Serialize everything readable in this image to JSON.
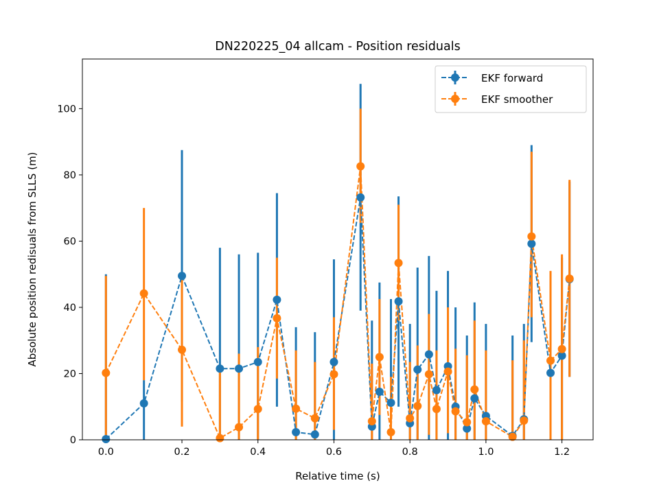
{
  "chart_data": {
    "type": "scatter",
    "title": "DN220225_04 allcam - Position residuals",
    "xlabel": "Relative time (s)",
    "ylabel": "Absolute position redisuals from SLLS (m)",
    "xlim": [
      -0.062,
      1.282
    ],
    "ylim": [
      0,
      115
    ],
    "xticks": [
      0.0,
      0.2,
      0.4,
      0.6,
      0.8,
      1.0,
      1.2
    ],
    "xtick_labels": [
      "0.0",
      "0.2",
      "0.4",
      "0.6",
      "0.8",
      "1.0",
      "1.2"
    ],
    "yticks": [
      0,
      20,
      40,
      60,
      80,
      100
    ],
    "ytick_labels": [
      "0",
      "20",
      "40",
      "60",
      "80",
      "100"
    ],
    "grid": false,
    "legend_position": "top-right",
    "series": [
      {
        "name": "EKF forward",
        "color": "#1f77b4",
        "line_style": "dashed",
        "marker": "circle",
        "points": [
          {
            "x": 0.0,
            "y": 0.2,
            "lo": 0,
            "hi": 50
          },
          {
            "x": 0.1,
            "y": 11,
            "lo": 0,
            "hi": 18
          },
          {
            "x": 0.2,
            "y": 49.5,
            "lo": 11.5,
            "hi": 87.5
          },
          {
            "x": 0.3,
            "y": 21.5,
            "lo": 0,
            "hi": 58
          },
          {
            "x": 0.35,
            "y": 21.5,
            "lo": 0,
            "hi": 56
          },
          {
            "x": 0.4,
            "y": 23.5,
            "lo": 0,
            "hi": 56.5
          },
          {
            "x": 0.45,
            "y": 42.3,
            "lo": 10,
            "hi": 74.5
          },
          {
            "x": 0.5,
            "y": 2.3,
            "lo": 0,
            "hi": 34
          },
          {
            "x": 0.55,
            "y": 1.6,
            "lo": 0,
            "hi": 32.5
          },
          {
            "x": 0.6,
            "y": 23.5,
            "lo": 0,
            "hi": 54.5
          },
          {
            "x": 0.67,
            "y": 73.2,
            "lo": 39,
            "hi": 107.5
          },
          {
            "x": 0.7,
            "y": 4,
            "lo": 0,
            "hi": 36
          },
          {
            "x": 0.72,
            "y": 14.5,
            "lo": 0,
            "hi": 47.5
          },
          {
            "x": 0.75,
            "y": 11.2,
            "lo": 0,
            "hi": 42.5
          },
          {
            "x": 0.77,
            "y": 41.8,
            "lo": 10,
            "hi": 73.5
          },
          {
            "x": 0.8,
            "y": 5,
            "lo": 0,
            "hi": 35
          },
          {
            "x": 0.82,
            "y": 21.2,
            "lo": 0,
            "hi": 52
          },
          {
            "x": 0.85,
            "y": 25.8,
            "lo": 0,
            "hi": 55.5
          },
          {
            "x": 0.87,
            "y": 15,
            "lo": 0,
            "hi": 45
          },
          {
            "x": 0.9,
            "y": 22.2,
            "lo": 0,
            "hi": 51
          },
          {
            "x": 0.92,
            "y": 10,
            "lo": 0,
            "hi": 40
          },
          {
            "x": 0.95,
            "y": 3.4,
            "lo": 0,
            "hi": 31.5
          },
          {
            "x": 0.97,
            "y": 12.5,
            "lo": 0,
            "hi": 41.5
          },
          {
            "x": 1.0,
            "y": 7.2,
            "lo": 0,
            "hi": 35
          },
          {
            "x": 1.07,
            "y": 1.2,
            "lo": 0,
            "hi": 31.5
          },
          {
            "x": 1.1,
            "y": 6.2,
            "lo": 0,
            "hi": 35
          },
          {
            "x": 1.12,
            "y": 59.2,
            "lo": 29.5,
            "hi": 89
          },
          {
            "x": 1.17,
            "y": 20.2,
            "lo": 0,
            "hi": 50
          },
          {
            "x": 1.2,
            "y": 25.4,
            "lo": 0,
            "hi": 55
          },
          {
            "x": 1.22,
            "y": 48.5,
            "lo": 19,
            "hi": 78
          }
        ]
      },
      {
        "name": "EKF smoother",
        "color": "#ff7f0e",
        "line_style": "dashed",
        "marker": "circle",
        "points": [
          {
            "x": 0.0,
            "y": 20.2,
            "lo": 0,
            "hi": 49.5
          },
          {
            "x": 0.1,
            "y": 44.2,
            "lo": 18,
            "hi": 70
          },
          {
            "x": 0.2,
            "y": 27.2,
            "lo": 4,
            "hi": 50
          },
          {
            "x": 0.3,
            "y": 0.5,
            "lo": 0,
            "hi": 22
          },
          {
            "x": 0.35,
            "y": 3.8,
            "lo": 0,
            "hi": 26
          },
          {
            "x": 0.4,
            "y": 9.3,
            "lo": 0,
            "hi": 28
          },
          {
            "x": 0.45,
            "y": 36.7,
            "lo": 18.5,
            "hi": 55
          },
          {
            "x": 0.5,
            "y": 9.4,
            "lo": 0,
            "hi": 27
          },
          {
            "x": 0.55,
            "y": 6.5,
            "lo": 0,
            "hi": 23.5
          },
          {
            "x": 0.6,
            "y": 19.8,
            "lo": 3,
            "hi": 37
          },
          {
            "x": 0.67,
            "y": 82.6,
            "lo": 65.5,
            "hi": 100
          },
          {
            "x": 0.7,
            "y": 5.6,
            "lo": 0,
            "hi": 23
          },
          {
            "x": 0.72,
            "y": 25,
            "lo": 7.5,
            "hi": 42.5
          },
          {
            "x": 0.75,
            "y": 2.3,
            "lo": 0,
            "hi": 19
          },
          {
            "x": 0.77,
            "y": 53.4,
            "lo": 36,
            "hi": 71
          },
          {
            "x": 0.8,
            "y": 6.5,
            "lo": 0,
            "hi": 23.5
          },
          {
            "x": 0.82,
            "y": 10.2,
            "lo": 0,
            "hi": 28.5
          },
          {
            "x": 0.85,
            "y": 19.8,
            "lo": 1.5,
            "hi": 38
          },
          {
            "x": 0.87,
            "y": 9.3,
            "lo": 0,
            "hi": 27
          },
          {
            "x": 0.9,
            "y": 20.6,
            "lo": 2,
            "hi": 40
          },
          {
            "x": 0.92,
            "y": 8.6,
            "lo": 0,
            "hi": 27.5
          },
          {
            "x": 0.95,
            "y": 5.3,
            "lo": 0,
            "hi": 25.5
          },
          {
            "x": 0.97,
            "y": 15.2,
            "lo": 0,
            "hi": 36
          },
          {
            "x": 1.0,
            "y": 5.6,
            "lo": 0,
            "hi": 27
          },
          {
            "x": 1.07,
            "y": 0.9,
            "lo": 0,
            "hi": 24
          },
          {
            "x": 1.1,
            "y": 5.8,
            "lo": 0,
            "hi": 30
          },
          {
            "x": 1.12,
            "y": 61.4,
            "lo": 37,
            "hi": 87
          },
          {
            "x": 1.17,
            "y": 23.9,
            "lo": 0,
            "hi": 51
          },
          {
            "x": 1.2,
            "y": 27.4,
            "lo": 0,
            "hi": 56
          },
          {
            "x": 1.22,
            "y": 48.7,
            "lo": 19,
            "hi": 78.5
          }
        ]
      }
    ]
  }
}
